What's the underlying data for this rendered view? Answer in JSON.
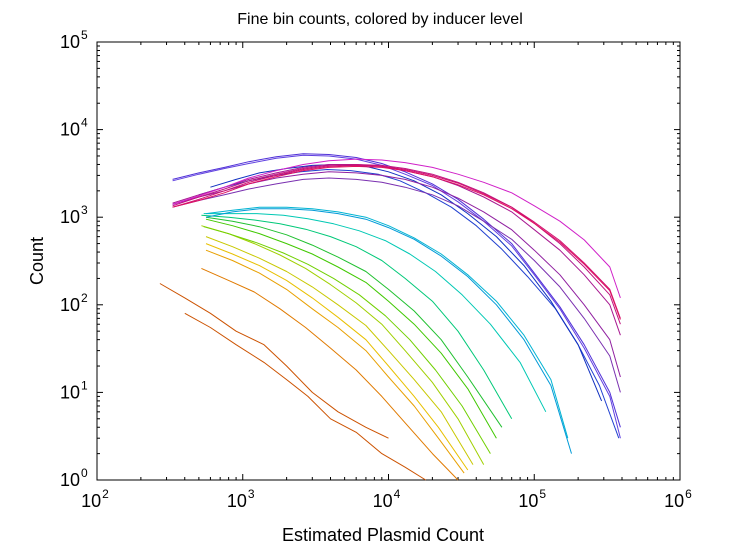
{
  "chart_data": {
    "type": "line",
    "title": "Fine bin counts, colored by inducer level",
    "xlabel": "Estimated Plasmid Count",
    "ylabel": "Count",
    "x_scale": "log",
    "y_scale": "log",
    "xlim": [
      100,
      1000000
    ],
    "ylim": [
      1,
      100000
    ],
    "grid": false,
    "x_ticks": [
      {
        "value": 100,
        "base": "10",
        "exp": "2"
      },
      {
        "value": 1000,
        "base": "10",
        "exp": "3"
      },
      {
        "value": 10000,
        "base": "10",
        "exp": "4"
      },
      {
        "value": 100000,
        "base": "10",
        "exp": "5"
      },
      {
        "value": 1000000,
        "base": "10",
        "exp": "6"
      }
    ],
    "y_ticks": [
      {
        "value": 1,
        "base": "10",
        "exp": "0"
      },
      {
        "value": 10,
        "base": "10",
        "exp": "1"
      },
      {
        "value": 100,
        "base": "10",
        "exp": "2"
      },
      {
        "value": 1000,
        "base": "10",
        "exp": "3"
      },
      {
        "value": 10000,
        "base": "10",
        "exp": "4"
      },
      {
        "value": 100000,
        "base": "10",
        "exp": "5"
      }
    ],
    "series": [
      {
        "color": "#cc5200",
        "x": [
          270,
          400,
          600,
          900,
          1400,
          2000,
          3000,
          4500,
          7000,
          10000
        ],
        "y": [
          175,
          120,
          80,
          50,
          35,
          20,
          10,
          6,
          4,
          3
        ]
      },
      {
        "color": "#cc5200",
        "x": [
          400,
          600,
          900,
          1400,
          2000,
          2800,
          4000,
          6000,
          9000,
          13000,
          18000
        ],
        "y": [
          80,
          55,
          35,
          22,
          14,
          9,
          5,
          3.5,
          2,
          1.4,
          1
        ]
      },
      {
        "color": "#e07a00",
        "x": [
          520,
          800,
          1200,
          1800,
          2700,
          4000,
          6000,
          9000,
          13000,
          20000,
          30000
        ],
        "y": [
          260,
          190,
          140,
          90,
          55,
          32,
          18,
          9,
          4.5,
          2,
          1
        ]
      },
      {
        "color": "#e8a000",
        "x": [
          560,
          850,
          1300,
          2000,
          3000,
          4500,
          7000,
          10000,
          15000,
          22000,
          33000
        ],
        "y": [
          420,
          320,
          230,
          150,
          90,
          55,
          30,
          15,
          7,
          3,
          1.2
        ]
      },
      {
        "color": "#e8c000",
        "x": [
          560,
          850,
          1300,
          2000,
          3000,
          4500,
          7000,
          10000,
          15000,
          22000,
          35000
        ],
        "y": [
          500,
          380,
          280,
          190,
          120,
          72,
          40,
          20,
          9,
          4,
          1.3
        ]
      },
      {
        "color": "#c8c800",
        "x": [
          560,
          850,
          1300,
          2000,
          3000,
          4500,
          7000,
          10000,
          15000,
          23000,
          38000
        ],
        "y": [
          600,
          460,
          340,
          240,
          160,
          100,
          58,
          30,
          14,
          6,
          1.5
        ]
      },
      {
        "color": "#a0d000",
        "x": [
          520,
          800,
          1200,
          1800,
          2700,
          4000,
          6000,
          9000,
          13000,
          20000,
          30000,
          45000
        ],
        "y": [
          800,
          650,
          500,
          370,
          260,
          170,
          105,
          60,
          30,
          13,
          5,
          1.5
        ]
      },
      {
        "color": "#70d000",
        "x": [
          540,
          820,
          1250,
          1900,
          2800,
          4200,
          6300,
          9500,
          14000,
          21000,
          32000,
          50000
        ],
        "y": [
          780,
          640,
          510,
          390,
          290,
          200,
          130,
          75,
          40,
          18,
          7,
          2
        ]
      },
      {
        "color": "#40c800",
        "x": [
          560,
          850,
          1300,
          2000,
          3000,
          4500,
          7000,
          10000,
          15000,
          23000,
          35000,
          55000
        ],
        "y": [
          950,
          800,
          650,
          500,
          380,
          270,
          180,
          110,
          60,
          28,
          11,
          3
        ]
      },
      {
        "color": "#20c030",
        "x": [
          560,
          850,
          1300,
          2000,
          3000,
          4500,
          7000,
          10000,
          15000,
          23000,
          35000,
          60000
        ],
        "y": [
          1000,
          900,
          780,
          630,
          480,
          350,
          240,
          150,
          85,
          40,
          15,
          4
        ]
      },
      {
        "color": "#00c878",
        "x": [
          520,
          800,
          1200,
          1800,
          2700,
          4000,
          6000,
          9000,
          13000,
          20000,
          30000,
          45000,
          70000
        ],
        "y": [
          1050,
          1000,
          930,
          840,
          730,
          600,
          460,
          320,
          200,
          110,
          50,
          18,
          5
        ]
      },
      {
        "color": "#00c8b4",
        "x": [
          540,
          820,
          1250,
          1900,
          2800,
          4200,
          6300,
          9500,
          14000,
          21000,
          32000,
          50000,
          80000,
          120000
        ],
        "y": [
          1100,
          1100,
          1100,
          1050,
          960,
          840,
          700,
          540,
          380,
          240,
          130,
          60,
          22,
          6
        ]
      },
      {
        "color": "#00b4d2",
        "x": [
          560,
          850,
          1300,
          2000,
          3000,
          4500,
          7000,
          10000,
          15000,
          23000,
          35000,
          55000,
          85000,
          130000,
          170000
        ],
        "y": [
          1100,
          1200,
          1300,
          1300,
          1250,
          1150,
          1000,
          800,
          580,
          380,
          220,
          110,
          45,
          14,
          3
        ]
      },
      {
        "color": "#009ad8",
        "x": [
          560,
          850,
          1300,
          2000,
          3000,
          4500,
          7000,
          10000,
          15000,
          23000,
          35000,
          55000,
          85000,
          130000,
          180000
        ],
        "y": [
          1000,
          1150,
          1250,
          1250,
          1200,
          1100,
          950,
          760,
          560,
          360,
          210,
          100,
          40,
          12,
          2
        ]
      },
      {
        "color": "#2040d0",
        "x": [
          500,
          750,
          1100,
          1700,
          2500,
          3800,
          5500,
          8500,
          12000,
          18000,
          27000,
          40000,
          60000,
          90000,
          140000,
          200000,
          280000,
          380000
        ],
        "y": [
          1800,
          2200,
          2600,
          3000,
          3300,
          3500,
          3400,
          3100,
          2600,
          1900,
          1300,
          800,
          430,
          210,
          90,
          35,
          12,
          3
        ]
      },
      {
        "color": "#1030c0",
        "x": [
          600,
          900,
          1300,
          2000,
          3000,
          4500,
          7000,
          10000,
          15000,
          23000,
          35000,
          55000,
          85000,
          130000,
          200000,
          290000
        ],
        "y": [
          2200,
          2700,
          3200,
          3600,
          3900,
          4000,
          3800,
          3300,
          2600,
          1800,
          1100,
          600,
          280,
          110,
          35,
          8
        ]
      },
      {
        "color": "#5030d8",
        "x": [
          330,
          500,
          750,
          1100,
          1700,
          2600,
          3900,
          6000,
          9000,
          13000,
          20000,
          30000,
          45000,
          70000,
          100000,
          150000,
          220000,
          330000,
          390000
        ],
        "y": [
          2700,
          3200,
          3700,
          4300,
          4900,
          5300,
          5200,
          4800,
          4100,
          3300,
          2400,
          1600,
          950,
          500,
          230,
          95,
          35,
          10,
          4
        ]
      },
      {
        "color": "#6040e0",
        "x": [
          330,
          500,
          750,
          1100,
          1700,
          2600,
          3900,
          6000,
          9000,
          13000,
          20000,
          30000,
          45000,
          70000,
          100000,
          150000,
          220000,
          330000,
          390000
        ],
        "y": [
          2600,
          3100,
          3600,
          4100,
          4700,
          5100,
          5000,
          4600,
          3900,
          3100,
          2300,
          1500,
          900,
          470,
          220,
          90,
          32,
          9,
          3
        ]
      },
      {
        "color": "#7a30b0",
        "x": [
          330,
          500,
          750,
          1100,
          1700,
          2600,
          3900,
          6000,
          9000,
          13000,
          20000,
          30000,
          45000,
          70000,
          100000,
          150000,
          220000,
          330000,
          390000
        ],
        "y": [
          1300,
          1550,
          1800,
          2100,
          2400,
          2700,
          2800,
          2700,
          2500,
          2200,
          1800,
          1350,
          900,
          560,
          320,
          160,
          70,
          26,
          10
        ]
      },
      {
        "color": "#9020a0",
        "x": [
          330,
          500,
          750,
          1100,
          1700,
          2600,
          3900,
          6000,
          9000,
          13000,
          20000,
          30000,
          45000,
          70000,
          100000,
          150000,
          220000,
          330000,
          390000
        ],
        "y": [
          1400,
          1700,
          2000,
          2400,
          2800,
          3100,
          3300,
          3200,
          3000,
          2700,
          2200,
          1650,
          1150,
          720,
          420,
          220,
          100,
          40,
          15
        ]
      },
      {
        "color": "#a81890",
        "x": [
          330,
          500,
          750,
          1100,
          1700,
          2600,
          3900,
          6000,
          9000,
          13000,
          20000,
          30000,
          45000,
          70000,
          100000,
          150000,
          220000,
          330000,
          390000
        ],
        "y": [
          1450,
          1800,
          2200,
          2700,
          3200,
          3700,
          4000,
          4000,
          3800,
          3400,
          2900,
          2300,
          1700,
          1150,
          720,
          420,
          220,
          100,
          45
        ]
      },
      {
        "color": "#c01480",
        "x": [
          330,
          500,
          750,
          1100,
          1700,
          2600,
          3900,
          6000,
          9000,
          13000,
          20000,
          30000,
          45000,
          70000,
          100000,
          150000,
          220000,
          330000,
          390000
        ],
        "y": [
          1350,
          1700,
          2100,
          2600,
          3100,
          3600,
          3900,
          4000,
          3900,
          3600,
          3100,
          2500,
          1900,
          1300,
          850,
          500,
          270,
          130,
          60
        ]
      },
      {
        "color": "#d01070",
        "x": [
          330,
          500,
          750,
          1100,
          1700,
          2600,
          3900,
          6000,
          9000,
          13000,
          20000,
          30000,
          45000,
          70000,
          100000,
          150000,
          220000,
          330000,
          390000
        ],
        "y": [
          1300,
          1600,
          2000,
          2500,
          3000,
          3500,
          3800,
          3900,
          3800,
          3500,
          3000,
          2450,
          1850,
          1300,
          880,
          540,
          300,
          150,
          70
        ]
      },
      {
        "color": "#e01060",
        "x": [
          330,
          500,
          750,
          1100,
          1700,
          2600,
          3900,
          6000,
          9000,
          13000,
          20000,
          30000,
          45000,
          70000,
          100000,
          150000,
          220000,
          330000,
          390000
        ],
        "y": [
          1300,
          1550,
          1900,
          2400,
          2900,
          3400,
          3700,
          3800,
          3700,
          3400,
          2900,
          2350,
          1800,
          1250,
          850,
          520,
          290,
          145,
          68
        ]
      },
      {
        "color": "#d020c8",
        "x": [
          330,
          500,
          750,
          1100,
          1700,
          2600,
          3900,
          6000,
          9000,
          13000,
          20000,
          30000,
          45000,
          70000,
          100000,
          150000,
          220000,
          330000,
          390000
        ],
        "y": [
          1400,
          1750,
          2200,
          2800,
          3400,
          4000,
          4400,
          4600,
          4500,
          4200,
          3700,
          3100,
          2500,
          1900,
          1350,
          900,
          550,
          270,
          120
        ]
      }
    ]
  }
}
